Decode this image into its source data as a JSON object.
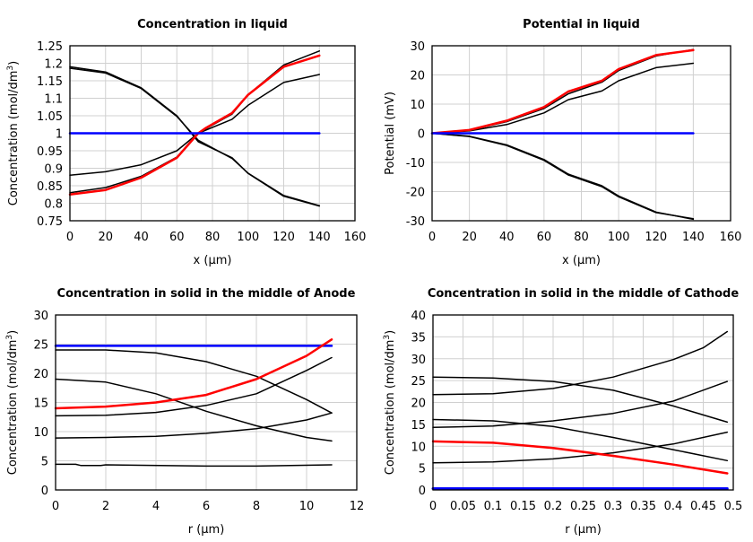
{
  "chart_data": [
    {
      "type": "line",
      "title": "Concentration in liquid",
      "xlabel": "x (µm)",
      "ylabel": "Concentration (mol/dm",
      "ylabel_sup": "3",
      "ylabel_end": ")",
      "xlim": [
        0,
        160
      ],
      "ylim": [
        0.75,
        1.25
      ],
      "xticks": [
        0,
        20,
        40,
        60,
        80,
        100,
        120,
        140,
        160
      ],
      "yticks": [
        0.75,
        0.8,
        0.85,
        0.9,
        0.95,
        1,
        1.05,
        1.1,
        1.15,
        1.2,
        1.25
      ],
      "ytick_labels": [
        "0.75",
        "0.8",
        "0.85",
        "0.9",
        "0.95",
        "1",
        "1.05",
        "1.1",
        "1.15",
        "1.2",
        "1.25"
      ],
      "grid": true,
      "series": [
        {
          "color": "#000000",
          "points": [
            [
              0,
              1.19
            ],
            [
              20,
              1.175
            ],
            [
              40,
              1.13
            ],
            [
              60,
              1.05
            ],
            [
              72,
              0.976
            ],
            [
              91,
              0.93
            ],
            [
              100,
              0.885
            ],
            [
              120,
              0.82
            ],
            [
              140,
              0.792
            ]
          ]
        },
        {
          "color": "#000000",
          "points": [
            [
              0,
              1.186
            ],
            [
              20,
              1.172
            ],
            [
              40,
              1.128
            ],
            [
              60,
              1.048
            ],
            [
              72,
              0.98
            ],
            [
              91,
              0.928
            ],
            [
              100,
              0.886
            ],
            [
              120,
              0.822
            ],
            [
              140,
              0.793
            ]
          ]
        },
        {
          "color": "#000000",
          "points": [
            [
              0,
              0.83
            ],
            [
              20,
              0.845
            ],
            [
              40,
              0.877
            ],
            [
              60,
              0.932
            ],
            [
              72,
              1.0
            ],
            [
              76,
              1.012
            ],
            [
              91,
              1.055
            ],
            [
              100,
              1.11
            ],
            [
              120,
              1.195
            ],
            [
              140,
              1.235
            ]
          ]
        },
        {
          "color": "#000000",
          "points": [
            [
              0,
              0.88
            ],
            [
              20,
              0.89
            ],
            [
              40,
              0.91
            ],
            [
              60,
              0.95
            ],
            [
              72,
              1.0
            ],
            [
              91,
              1.04
            ],
            [
              100,
              1.08
            ],
            [
              120,
              1.145
            ],
            [
              140,
              1.168
            ]
          ]
        },
        {
          "color": "#ff0000",
          "width": 2.5,
          "points": [
            [
              0,
              0.825
            ],
            [
              20,
              0.838
            ],
            [
              40,
              0.873
            ],
            [
              60,
              0.93
            ],
            [
              72,
              1.0
            ],
            [
              76,
              1.014
            ],
            [
              91,
              1.058
            ],
            [
              100,
              1.11
            ],
            [
              120,
              1.19
            ],
            [
              140,
              1.222
            ]
          ]
        },
        {
          "color": "#0000ff",
          "width": 2.5,
          "points": [
            [
              0,
              1
            ],
            [
              140,
              1
            ]
          ]
        }
      ]
    },
    {
      "type": "line",
      "title": "Potential in liquid",
      "xlabel": "x (µm)",
      "ylabel": "Potential (mV)",
      "xlim": [
        0,
        160
      ],
      "ylim": [
        -30,
        30
      ],
      "xticks": [
        0,
        20,
        40,
        60,
        80,
        100,
        120,
        140,
        160
      ],
      "yticks": [
        -30,
        -20,
        -10,
        0,
        10,
        20,
        30
      ],
      "ytick_labels": [
        "-30",
        "-20",
        "-10",
        "0",
        "10",
        "20",
        "30"
      ],
      "grid": true,
      "series": [
        {
          "color": "#000000",
          "points": [
            [
              0,
              0
            ],
            [
              20,
              1
            ],
            [
              40,
              4
            ],
            [
              60,
              8.5
            ],
            [
              73,
              13.5
            ],
            [
              91,
              17.5
            ],
            [
              100,
              21.5
            ],
            [
              120,
              26.5
            ],
            [
              140,
              28.7
            ]
          ]
        },
        {
          "color": "#000000",
          "points": [
            [
              0,
              0
            ],
            [
              20,
              0.8
            ],
            [
              40,
              3
            ],
            [
              60,
              7
            ],
            [
              73,
              11.5
            ],
            [
              91,
              14.5
            ],
            [
              100,
              18
            ],
            [
              120,
              22.5
            ],
            [
              140,
              24
            ]
          ]
        },
        {
          "color": "#000000",
          "points": [
            [
              0,
              0
            ],
            [
              20,
              -1
            ],
            [
              40,
              -4
            ],
            [
              60,
              -9
            ],
            [
              73,
              -14
            ],
            [
              91,
              -18
            ],
            [
              100,
              -21.5
            ],
            [
              120,
              -27
            ],
            [
              140,
              -29.5
            ]
          ]
        },
        {
          "color": "#000000",
          "points": [
            [
              0,
              0
            ],
            [
              20,
              -1.1
            ],
            [
              40,
              -4.2
            ],
            [
              60,
              -9.3
            ],
            [
              73,
              -14.3
            ],
            [
              91,
              -18.3
            ],
            [
              100,
              -21.8
            ],
            [
              120,
              -27.2
            ],
            [
              140,
              -29.3
            ]
          ]
        },
        {
          "color": "#ff0000",
          "width": 2.5,
          "points": [
            [
              0,
              0
            ],
            [
              20,
              1.1
            ],
            [
              40,
              4.3
            ],
            [
              60,
              9
            ],
            [
              73,
              14.3
            ],
            [
              91,
              18
            ],
            [
              100,
              22
            ],
            [
              120,
              26.8
            ],
            [
              140,
              28.5
            ]
          ]
        },
        {
          "color": "#0000ff",
          "width": 2.5,
          "points": [
            [
              0,
              0
            ],
            [
              140,
              0
            ]
          ]
        }
      ]
    },
    {
      "type": "line",
      "title": "Concentration in solid in the middle of Anode",
      "xlabel": "r (µm)",
      "ylabel": "Concentration (mol/dm",
      "ylabel_sup": "3",
      "ylabel_end": ")",
      "xlim": [
        0,
        12
      ],
      "ylim": [
        0,
        30
      ],
      "xticks": [
        0,
        2,
        4,
        6,
        8,
        10,
        12
      ],
      "yticks": [
        0,
        5,
        10,
        15,
        20,
        25,
        30
      ],
      "ytick_labels": [
        "0",
        "5",
        "10",
        "15",
        "20",
        "25",
        "30"
      ],
      "grid": true,
      "series": [
        {
          "color": "#0000ff",
          "width": 2.5,
          "points": [
            [
              0,
              24.7
            ],
            [
              11,
              24.7
            ]
          ]
        },
        {
          "color": "#000000",
          "points": [
            [
              0,
              24
            ],
            [
              2,
              24
            ],
            [
              4,
              23.5
            ],
            [
              6,
              22
            ],
            [
              8,
              19.5
            ],
            [
              10,
              15.5
            ],
            [
              11,
              13.2
            ]
          ]
        },
        {
          "color": "#000000",
          "points": [
            [
              0,
              19
            ],
            [
              2,
              18.5
            ],
            [
              4,
              16.5
            ],
            [
              6,
              13.5
            ],
            [
              8,
              11
            ],
            [
              10,
              9
            ],
            [
              11,
              8.4
            ]
          ]
        },
        {
          "color": "#000000",
          "points": [
            [
              0,
              12.7
            ],
            [
              2,
              12.8
            ],
            [
              4,
              13.3
            ],
            [
              6,
              14.5
            ],
            [
              8,
              16.5
            ],
            [
              10,
              20.5
            ],
            [
              11,
              22.7
            ]
          ]
        },
        {
          "color": "#000000",
          "points": [
            [
              0,
              8.9
            ],
            [
              2,
              9
            ],
            [
              4,
              9.2
            ],
            [
              6,
              9.7
            ],
            [
              8,
              10.5
            ],
            [
              10,
              12
            ],
            [
              11,
              13.2
            ]
          ]
        },
        {
          "color": "#000000",
          "points": [
            [
              0,
              4.4
            ],
            [
              0.8,
              4.4
            ],
            [
              1,
              4.2
            ],
            [
              1.8,
              4.2
            ],
            [
              2,
              4.3
            ],
            [
              6,
              4.1
            ],
            [
              8,
              4.1
            ],
            [
              11,
              4.3
            ]
          ]
        },
        {
          "color": "#ff0000",
          "width": 2.5,
          "points": [
            [
              0,
              14
            ],
            [
              2,
              14.3
            ],
            [
              4,
              15
            ],
            [
              6,
              16.3
            ],
            [
              8,
              19
            ],
            [
              10,
              23
            ],
            [
              11,
              25.8
            ]
          ]
        }
      ]
    },
    {
      "type": "line",
      "title": "Concentration in solid in the middle of Cathode",
      "xlabel": "r (µm)",
      "ylabel": "Concentration (mol/dm",
      "ylabel_sup": "3",
      "ylabel_end": ")",
      "xlim": [
        0,
        0.5
      ],
      "ylim": [
        0,
        40
      ],
      "xticks": [
        0,
        0.05,
        0.1,
        0.15,
        0.2,
        0.25,
        0.3,
        0.35,
        0.4,
        0.45,
        0.5
      ],
      "xtick_labels": [
        "0",
        "0.05",
        "0.1",
        "0.15",
        "0.2",
        "0.25",
        "0.3",
        "0.35",
        "0.4",
        "0.45",
        "0.5"
      ],
      "yticks": [
        0,
        5,
        10,
        15,
        20,
        25,
        30,
        35,
        40
      ],
      "ytick_labels": [
        "0",
        "5",
        "10",
        "15",
        "20",
        "25",
        "30",
        "35",
        "40"
      ],
      "grid": true,
      "series": [
        {
          "color": "#0000ff",
          "width": 3,
          "points": [
            [
              0,
              0.3
            ],
            [
              0.49,
              0.3
            ]
          ]
        },
        {
          "color": "#000000",
          "points": [
            [
              0,
              25.8
            ],
            [
              0.1,
              25.6
            ],
            [
              0.2,
              24.8
            ],
            [
              0.3,
              22.8
            ],
            [
              0.4,
              19.2
            ],
            [
              0.49,
              15.5
            ]
          ]
        },
        {
          "color": "#000000",
          "points": [
            [
              0,
              21.8
            ],
            [
              0.1,
              22
            ],
            [
              0.2,
              23.2
            ],
            [
              0.3,
              25.8
            ],
            [
              0.4,
              29.8
            ],
            [
              0.45,
              32.5
            ],
            [
              0.49,
              36.2
            ]
          ]
        },
        {
          "color": "#000000",
          "points": [
            [
              0,
              16.1
            ],
            [
              0.1,
              15.8
            ],
            [
              0.2,
              14.5
            ],
            [
              0.3,
              12
            ],
            [
              0.4,
              9.2
            ],
            [
              0.49,
              6.7
            ]
          ]
        },
        {
          "color": "#000000",
          "points": [
            [
              0,
              14.3
            ],
            [
              0.1,
              14.6
            ],
            [
              0.2,
              15.8
            ],
            [
              0.3,
              17.5
            ],
            [
              0.4,
              20.3
            ],
            [
              0.49,
              24.8
            ]
          ]
        },
        {
          "color": "#000000",
          "points": [
            [
              0,
              6.2
            ],
            [
              0.1,
              6.4
            ],
            [
              0.2,
              7.1
            ],
            [
              0.3,
              8.5
            ],
            [
              0.4,
              10.5
            ],
            [
              0.49,
              13.2
            ]
          ]
        },
        {
          "color": "#ff0000",
          "width": 2.5,
          "points": [
            [
              0,
              11.1
            ],
            [
              0.1,
              10.8
            ],
            [
              0.2,
              9.6
            ],
            [
              0.3,
              7.8
            ],
            [
              0.4,
              5.8
            ],
            [
              0.49,
              3.8
            ]
          ]
        }
      ]
    }
  ]
}
